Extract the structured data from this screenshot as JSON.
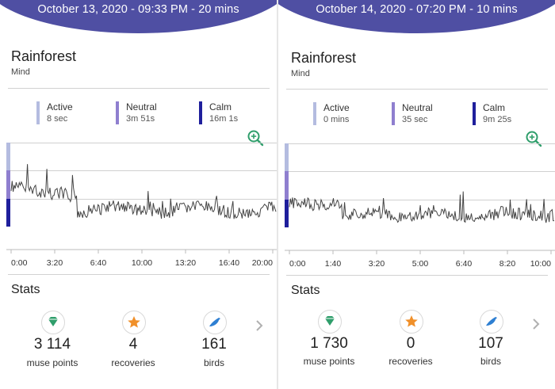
{
  "colors": {
    "header": "#4f4fa3",
    "active": "#b4bce0",
    "neutral": "#8f7fcf",
    "calm": "#1f1f9c",
    "zoom": "#2f9e6b",
    "gem": "#2f9e6b",
    "recovery": "#f0902a",
    "bird": "#2e7fd2"
  },
  "panels": [
    {
      "header": "October 13, 2020 - 09:33 PM - 20 mins",
      "title": "Rainforest",
      "subtitle": "Mind",
      "legend": [
        {
          "label": "Active",
          "value": "8 sec"
        },
        {
          "label": "Neutral",
          "value": "3m 51s"
        },
        {
          "label": "Calm",
          "value": "16m 1s"
        }
      ],
      "ticks": [
        "0:00",
        "3:20",
        "6:40",
        "10:00",
        "13:20",
        "16:40",
        "20:00"
      ],
      "stats_title": "Stats",
      "stats": [
        {
          "value": "3 114",
          "label": "muse points",
          "icon": "gem-icon"
        },
        {
          "value": "4",
          "label": "recoveries",
          "icon": "star-icon"
        },
        {
          "value": "161",
          "label": "birds",
          "icon": "bird-icon"
        }
      ]
    },
    {
      "header": "October 14, 2020 - 07:20 PM - 10 mins",
      "title": "Rainforest",
      "subtitle": "Mind",
      "legend": [
        {
          "label": "Active",
          "value": "0 mins"
        },
        {
          "label": "Neutral",
          "value": "35 sec"
        },
        {
          "label": "Calm",
          "value": "9m 25s"
        }
      ],
      "ticks": [
        "0:00",
        "1:40",
        "3:20",
        "5:00",
        "6:40",
        "8:20",
        "10:00"
      ],
      "stats_title": "Stats",
      "stats": [
        {
          "value": "1 730",
          "label": "muse points",
          "icon": "gem-icon"
        },
        {
          "value": "0",
          "label": "recoveries",
          "icon": "star-icon"
        },
        {
          "value": "107",
          "label": "birds",
          "icon": "bird-icon"
        }
      ]
    }
  ]
}
